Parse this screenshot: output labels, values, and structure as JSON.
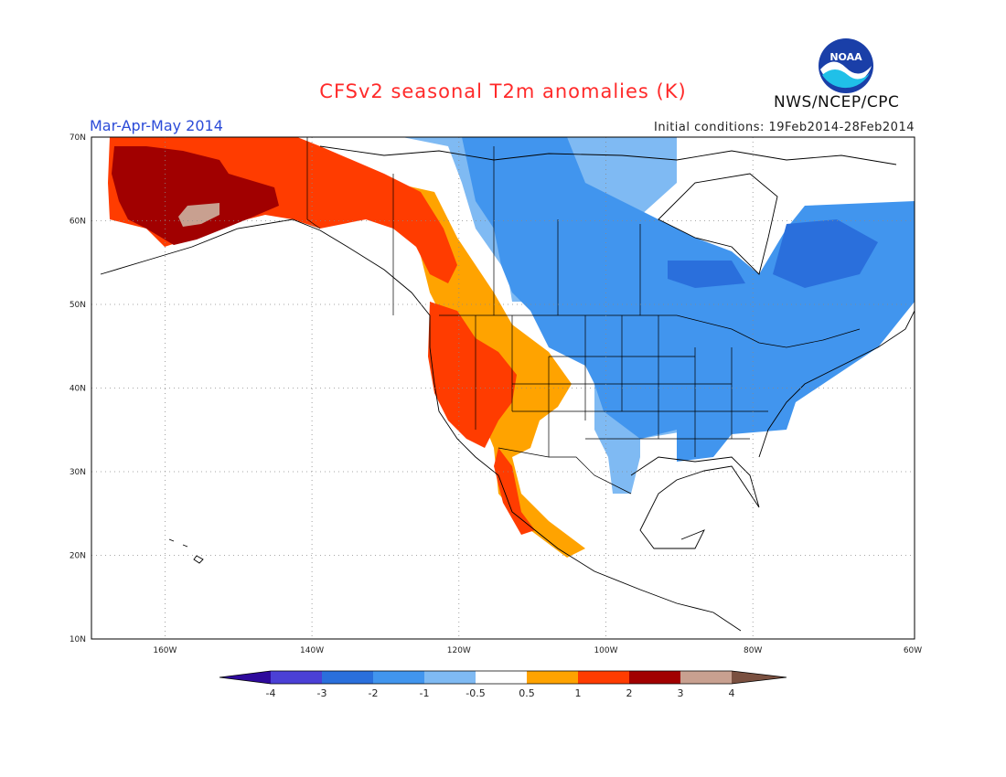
{
  "header": {
    "title": "CFSv2 seasonal T2m anomalies (K)",
    "season": "Mar-Apr-May 2014",
    "initial_conditions": "Initial conditions: 19Feb2014-28Feb2014",
    "agency": "NWS/NCEP/CPC",
    "logo_text": "NOAA"
  },
  "map": {
    "projection": "equirectangular",
    "lon_range": [
      -172,
      -60
    ],
    "lat_range": [
      10,
      70
    ],
    "lat_ticks": [
      "70N",
      "60N",
      "50N",
      "40N",
      "30N",
      "20N",
      "10N"
    ],
    "lon_ticks": [
      "160W",
      "140W",
      "120W",
      "100W",
      "80W",
      "60W"
    ],
    "grid": "dotted"
  },
  "colorbar": {
    "labels": [
      "-4",
      "-3",
      "-2",
      "-1",
      "-0.5",
      "0.5",
      "1",
      "2",
      "3",
      "4"
    ],
    "colors": [
      "#2e0a9c",
      "#4b40d6",
      "#2a6fdc",
      "#4195ee",
      "#7fbaf3",
      "#ffffff",
      "#ffa300",
      "#ff3c00",
      "#a10000",
      "#c8a090",
      "#7a5040"
    ]
  },
  "anomaly_regions": [
    {
      "class": "3",
      "color": "#a10000",
      "region": "Alaska interior"
    },
    {
      "class": "2",
      "color": "#ff3c00",
      "region": "Alaska, western Canada, US West Coast"
    },
    {
      "class": "1",
      "color": "#ffa300",
      "region": "Interior West / Rockies"
    },
    {
      "class": "-1",
      "color": "#4195ee",
      "region": "Central/Eastern Canada, Central/Eastern US"
    },
    {
      "class": "-2",
      "color": "#2a6fdc",
      "region": "Quebec / Hudson Bay"
    },
    {
      "class": "-0.5",
      "color": "#7fbaf3",
      "region": "Northern Canada, Gulf Coast"
    }
  ]
}
